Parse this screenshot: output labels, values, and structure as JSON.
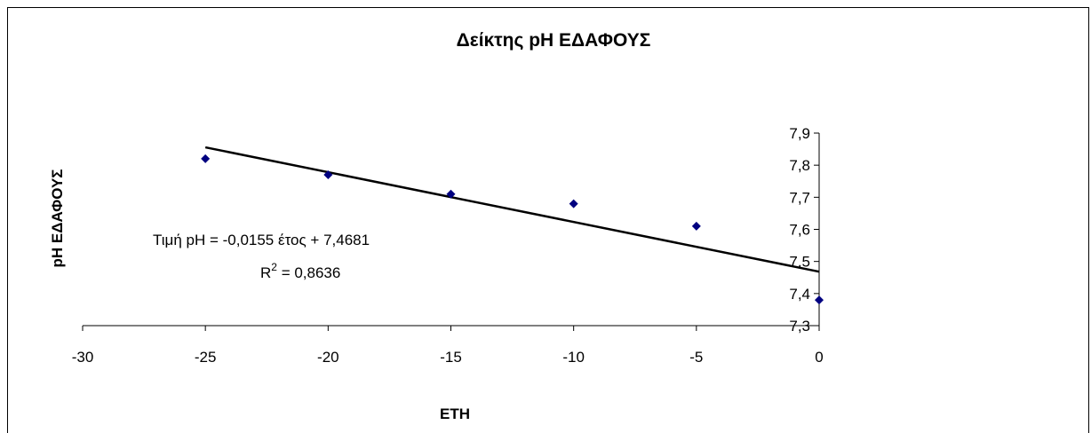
{
  "chart_data": {
    "type": "scatter",
    "title": "Δείκτης pH ΕΔΑΦΟΥΣ",
    "xlabel": "ΕΤΗ",
    "ylabel": "pH ΕΔΑΦΟΥΣ",
    "xlim": [
      -30,
      0
    ],
    "ylim": [
      7.3,
      7.9
    ],
    "x_ticks": [
      -30,
      -25,
      -20,
      -15,
      -10,
      -5,
      0
    ],
    "x_tick_labels": [
      "-30",
      "-25",
      "-20",
      "-15",
      "-10",
      "-5",
      "0"
    ],
    "y_ticks": [
      7.3,
      7.4,
      7.5,
      7.6,
      7.7,
      7.8,
      7.9
    ],
    "y_tick_labels": [
      "7,3",
      "7,4",
      "7,5",
      "7,6",
      "7,7",
      "7,8",
      "7,9"
    ],
    "grid": false,
    "series": [
      {
        "x": [
          -25,
          -20,
          -15,
          -10,
          -5,
          0
        ],
        "y": [
          7.82,
          7.77,
          7.71,
          7.68,
          7.61,
          7.38
        ],
        "color": "#000080",
        "marker": "diamond"
      }
    ],
    "trendline": {
      "slope": -0.0155,
      "intercept": 7.4681,
      "x_range": [
        -25,
        0
      ],
      "color": "#000000"
    },
    "annotations": {
      "equation_text": "Τιμή  pH = -0,0155 έτος + 7,4681",
      "r2_prefix": "R",
      "r2_superscript": "2",
      "r2_value": " = 0,8636"
    }
  }
}
